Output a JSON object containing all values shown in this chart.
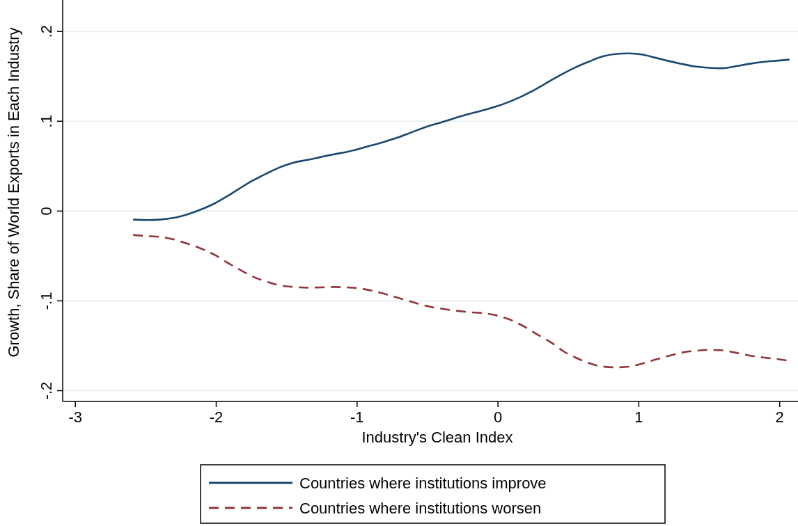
{
  "chart_data": {
    "type": "line",
    "xlabel": "Industry's Clean Index",
    "ylabel": "Growth, Share of World Exports in Each Industry",
    "xlim": [
      -3.09,
      2.13
    ],
    "xticks": [
      -3,
      -2,
      -1,
      0,
      1,
      2
    ],
    "ylim": [
      -0.212,
      0.235
    ],
    "yticks": [
      {
        "value": -0.2,
        "label": "-.2"
      },
      {
        "value": -0.1,
        "label": "-.1"
      },
      0,
      {
        "value": 0.1,
        "label": ".1"
      },
      {
        "value": 0.2,
        "label": ".2"
      }
    ],
    "grid": "y",
    "legend": "bottom",
    "marker": "none",
    "series": [
      {
        "name": "Countries where institutions improve",
        "color": "#1a476f",
        "line_style": "solid",
        "x": [
          -2.59,
          -2.49,
          -2.4,
          -2.3,
          -2.21,
          -2.12,
          -2.01,
          -1.92,
          -1.83,
          -1.74,
          -1.64,
          -1.55,
          -1.45,
          -1.35,
          -1.26,
          -1.17,
          -1.07,
          -0.99,
          -0.9,
          -0.81,
          -0.71,
          -0.6,
          -0.47,
          -0.4,
          -0.22,
          -0.11,
          -0.02,
          0.07,
          0.16,
          0.26,
          0.36,
          0.45,
          0.55,
          0.64,
          0.74,
          0.84,
          0.93,
          1.02,
          1.11,
          1.2,
          1.3,
          1.4,
          1.5,
          1.59,
          1.68,
          1.79,
          1.88,
          1.99,
          2.07
        ],
        "values": [
          -0.0095,
          -0.01,
          -0.0095,
          -0.0075,
          -0.004,
          0.001,
          0.0086,
          0.0167,
          0.0256,
          0.034,
          0.042,
          0.0486,
          0.054,
          0.057,
          0.06,
          0.063,
          0.066,
          0.069,
          0.073,
          0.077,
          0.082,
          0.0885,
          0.0957,
          0.0989,
          0.1075,
          0.112,
          0.116,
          0.121,
          0.127,
          0.135,
          0.144,
          0.152,
          0.16,
          0.166,
          0.172,
          0.175,
          0.1756,
          0.1744,
          0.171,
          0.1675,
          0.164,
          0.161,
          0.1595,
          0.159,
          0.161,
          0.164,
          0.166,
          0.1675,
          0.1687
        ]
      },
      {
        "name": "Countries where institutions worsen",
        "color": "#90353b",
        "line_style": "dashed",
        "x": [
          -2.59,
          -2.49,
          -2.4,
          -2.3,
          -2.21,
          -2.12,
          -2.01,
          -1.92,
          -1.83,
          -1.74,
          -1.64,
          -1.55,
          -1.45,
          -1.35,
          -1.26,
          -1.17,
          -1.07,
          -0.99,
          -0.9,
          -0.81,
          -0.71,
          -0.6,
          -0.47,
          -0.39,
          -0.22,
          -0.09,
          0.0,
          0.07,
          0.16,
          0.27,
          0.38,
          0.47,
          0.55,
          0.64,
          0.74,
          0.84,
          0.93,
          1.02,
          1.11,
          1.2,
          1.31,
          1.41,
          1.5,
          1.59,
          1.68,
          1.79,
          1.88,
          1.99,
          2.07
        ],
        "values": [
          -0.0267,
          -0.0279,
          -0.0287,
          -0.0316,
          -0.036,
          -0.041,
          -0.0489,
          -0.0575,
          -0.0655,
          -0.073,
          -0.0787,
          -0.0828,
          -0.0845,
          -0.0853,
          -0.085,
          -0.0845,
          -0.085,
          -0.0859,
          -0.0885,
          -0.092,
          -0.0966,
          -0.1017,
          -0.107,
          -0.109,
          -0.1124,
          -0.114,
          -0.1167,
          -0.12,
          -0.1264,
          -0.1365,
          -0.1466,
          -0.1566,
          -0.163,
          -0.169,
          -0.173,
          -0.174,
          -0.1733,
          -0.17,
          -0.1658,
          -0.1618,
          -0.1575,
          -0.1555,
          -0.1546,
          -0.155,
          -0.1575,
          -0.161,
          -0.163,
          -0.165,
          -0.1667
        ]
      }
    ]
  }
}
